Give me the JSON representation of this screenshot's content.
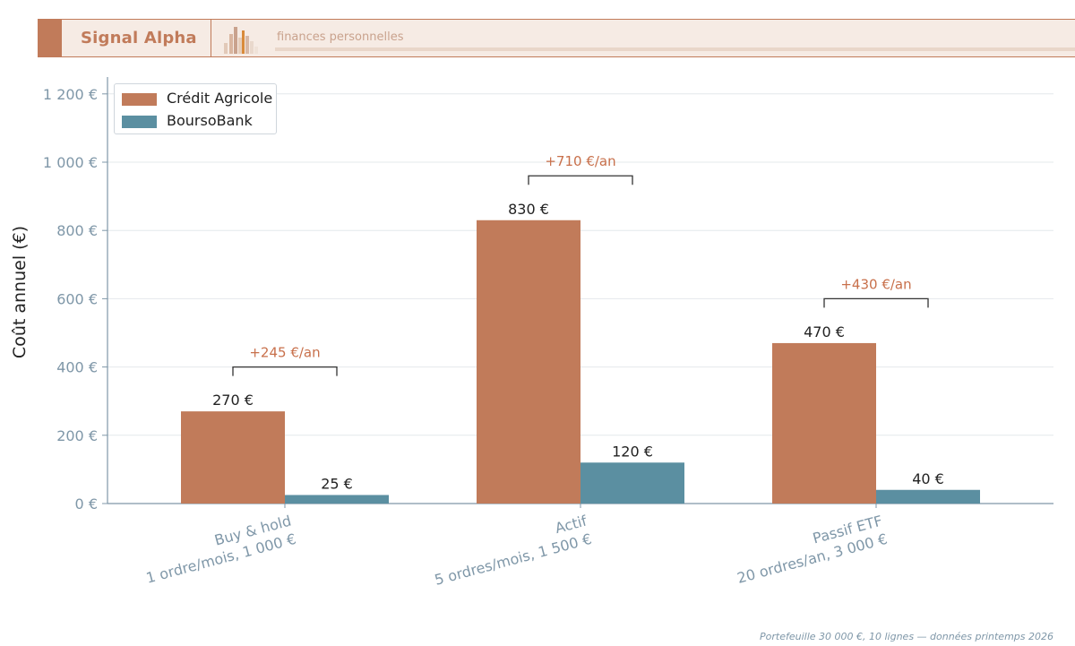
{
  "header": {
    "brand": "Signal Alpha",
    "tagline": "finances personnelles"
  },
  "footnote": "Portefeuille 30 000 €, 10 lignes — données printemps 2026",
  "colors": {
    "credit_agricole": "#c17b5a",
    "boursobank": "#5b8fa1",
    "annotation": "#c8704b",
    "axis": "#7f97a8"
  },
  "chart_data": {
    "type": "bar",
    "title": "",
    "xlabel": "",
    "ylabel": "Coût annuel (€)",
    "ylim": [
      0,
      1250
    ],
    "yticks": [
      0,
      200,
      400,
      600,
      800,
      1000,
      1200
    ],
    "ytick_labels": [
      "0 €",
      "200 €",
      "400 €",
      "600 €",
      "800 €",
      "1 000 €",
      "1 200 €"
    ],
    "grid": true,
    "legend_position": "top-left",
    "categories": [
      [
        "Buy & hold",
        "1 ordre/mois, 1 000 €"
      ],
      [
        "Actif",
        "5 ordres/mois, 1 500 €"
      ],
      [
        "Passif ETF",
        "20 ordres/an, 3 000 €"
      ]
    ],
    "series": [
      {
        "name": "Crédit Agricole",
        "values": [
          270,
          830,
          470
        ],
        "labels": [
          "270 €",
          "830 €",
          "470 €"
        ]
      },
      {
        "name": "BoursoBank",
        "values": [
          25,
          120,
          40
        ],
        "labels": [
          "25 €",
          "120 €",
          "40 €"
        ]
      }
    ],
    "annotations": [
      {
        "text": "+245 €/an",
        "y": 400
      },
      {
        "text": "+710 €/an",
        "y": 960
      },
      {
        "text": "+430 €/an",
        "y": 600
      }
    ]
  }
}
